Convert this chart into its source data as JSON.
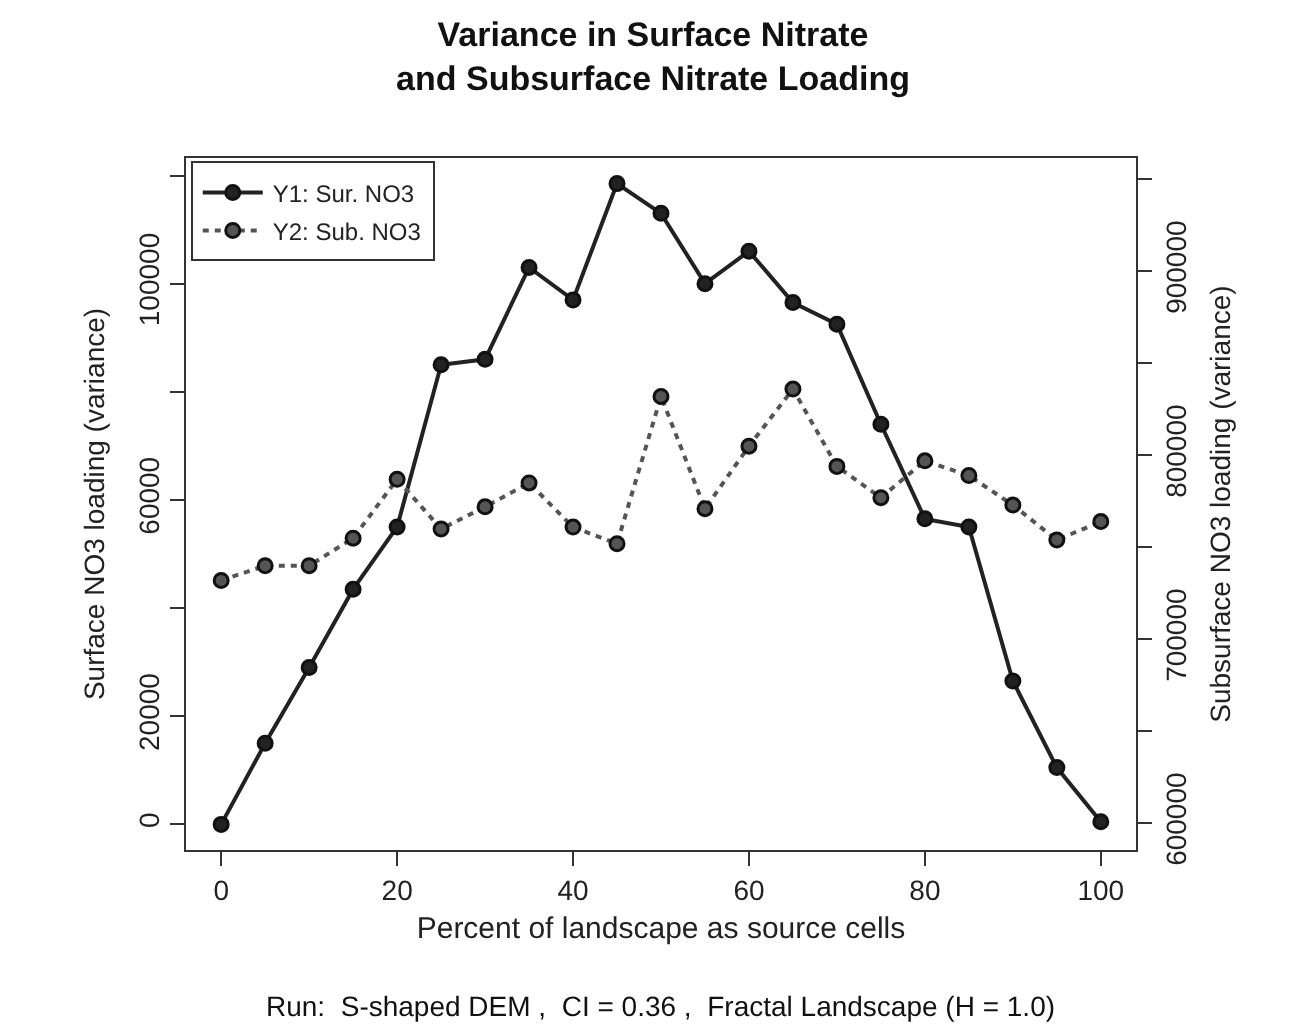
{
  "chart_data": {
    "type": "line",
    "title": "Variance in Surface Nitrate\nand Subsurface Nitrate Loading",
    "xlabel": "Percent of landscape as source cells",
    "ylabel": "Surface NO3 loading (variance)",
    "y2label": "Subsurface NO3 loading (variance)",
    "annotations": [
      "Run:  S-shaped DEM ,  CI = 0.36 ,  Fractal Landscape (H = 1.0)"
    ],
    "x": [
      0,
      5,
      10,
      15,
      20,
      25,
      30,
      35,
      40,
      45,
      50,
      55,
      60,
      65,
      70,
      75,
      80,
      85,
      90,
      95,
      100
    ],
    "series": [
      {
        "name": "Y1: Sur. NO3",
        "color": "#222222",
        "line_style": "solid",
        "values": [
          0,
          15000,
          29000,
          43500,
          55000,
          85000,
          86000,
          103000,
          97000,
          118500,
          113000,
          100000,
          106000,
          96500,
          92500,
          74000,
          56500,
          55000,
          26500,
          10500,
          500
        ]
      },
      {
        "name": "Y2: Sub. NO3",
        "color": "#555555",
        "line_style": "dotted",
        "axis": "y2",
        "values": [
          732000,
          740000,
          740000,
          755000,
          787000,
          760000,
          772000,
          785000,
          761000,
          752000,
          832000,
          771000,
          805000,
          836000,
          794000,
          777000,
          797000,
          789000,
          773000,
          754000,
          764000
        ]
      }
    ],
    "xlim": [
      -4,
      104
    ],
    "xticks": [
      0,
      20,
      40,
      60,
      80,
      100
    ],
    "ylim": [
      -4740,
      123240
    ],
    "yticks": [
      0,
      20000,
      {
        "value": 40000,
        "label": null
      },
      60000,
      {
        "value": 80000,
        "label": null
      },
      100000,
      {
        "value": 120000,
        "label": null
      }
    ],
    "y2lim": [
      585500,
      961600
    ],
    "y2ticks": [
      600000,
      {
        "value": 650000,
        "label": null
      },
      700000,
      {
        "value": 750000,
        "label": null
      },
      800000,
      {
        "value": 850000,
        "label": null
      },
      900000,
      {
        "value": 950000,
        "label": null
      }
    ],
    "grid": false,
    "legend": "top left",
    "marker": "circle"
  }
}
